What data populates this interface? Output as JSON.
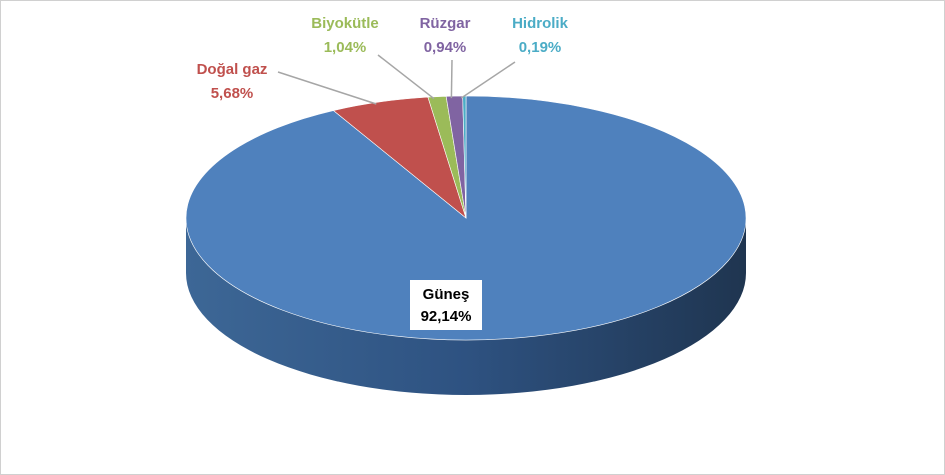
{
  "chart_data": {
    "type": "pie3d",
    "categories": [
      "Güneş",
      "Doğal gaz",
      "Biyokütle",
      "Rüzgar",
      "Hidrolik"
    ],
    "values": [
      92.14,
      5.68,
      1.04,
      0.94,
      0.19
    ],
    "value_labels": [
      "92,14%",
      "5,68%",
      "1,04%",
      "0,94%",
      "0,19%"
    ],
    "colors": [
      "#4f81bd",
      "#c0504d",
      "#9bbb59",
      "#8064a2",
      "#4bacc6"
    ]
  }
}
